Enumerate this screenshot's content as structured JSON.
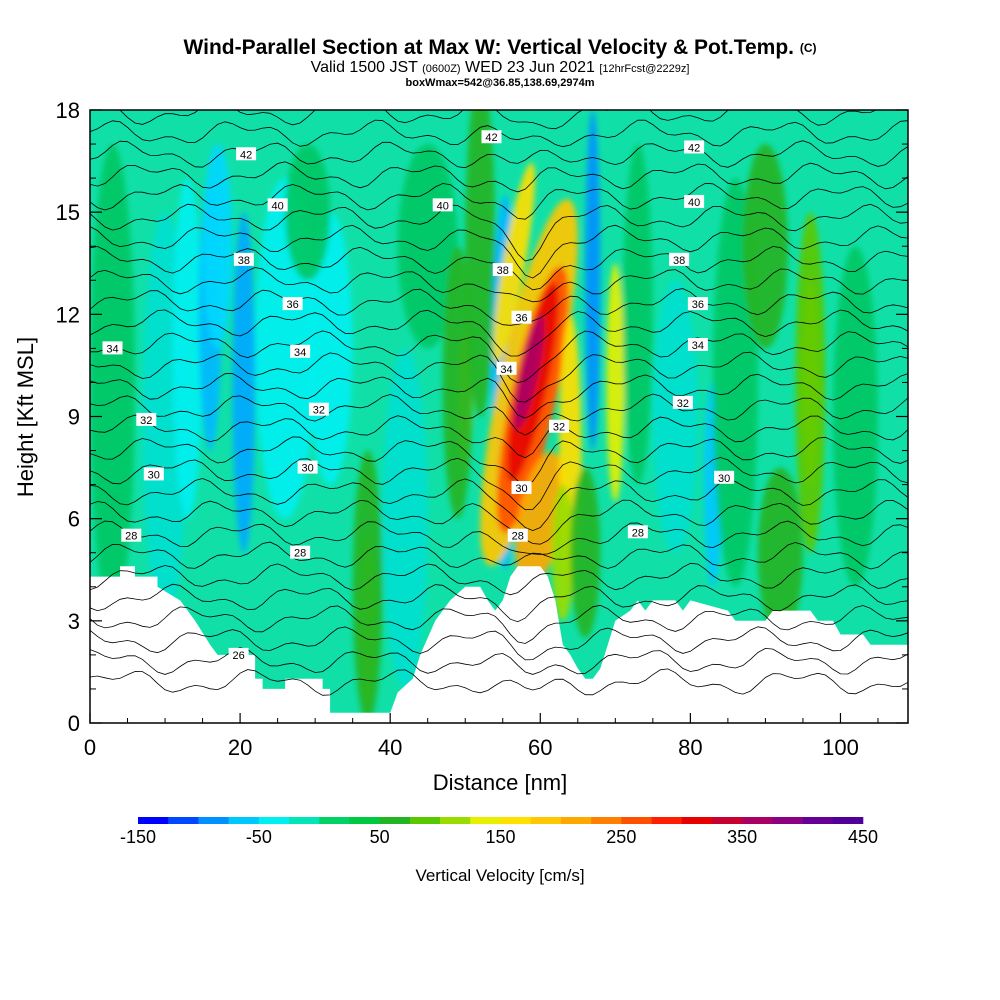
{
  "header": {
    "title": "Wind-Parallel Section at Max W: Vertical Velocity & Pot.Temp.",
    "title_mark": "(C)",
    "valid_prefix": "Valid 1500 JST",
    "valid_utc": "(0600Z)",
    "valid_date": "WED 23 Jun 2021",
    "forecast_info": "[12hrFcst@2229z]",
    "box_info": "boxWmax=542@36.85,138.69,2974m"
  },
  "chart_data": {
    "type": "heatmap",
    "title": "Wind-Parallel Section at Max W: Vertical Velocity & Pot.Temp.",
    "xlabel": "Distance [nm]",
    "ylabel": "Height [Kft MSL]",
    "xlim": [
      0,
      109
    ],
    "ylim": [
      0,
      18
    ],
    "x_ticks": [
      0,
      20,
      40,
      60,
      80,
      100
    ],
    "y_ticks": [
      0,
      3,
      6,
      9,
      12,
      15,
      18
    ],
    "colorbar": {
      "title": "Vertical Velocity [cm/s]",
      "range": [
        -150,
        450
      ],
      "tick_values": [
        -150,
        -50,
        50,
        150,
        250,
        350,
        450
      ],
      "tick_labels": [
        "-150",
        "-50",
        "50",
        "150",
        "250",
        "350",
        "450"
      ],
      "colors": [
        "#0000ff",
        "#0048ff",
        "#0090ff",
        "#00c8ff",
        "#00f0f0",
        "#00e6b8",
        "#00d264",
        "#00c840",
        "#22b422",
        "#5ac800",
        "#9adc00",
        "#e6f000",
        "#ffe000",
        "#ffc800",
        "#ffa800",
        "#ff8000",
        "#ff5000",
        "#ff1e00",
        "#e60000",
        "#c80032",
        "#aa0064",
        "#8c0082",
        "#640096",
        "#500096"
      ]
    },
    "potential_temperature_contours": {
      "levels": [
        26,
        28,
        30,
        32,
        34,
        36,
        38,
        40,
        42
      ],
      "labels": [
        {
          "text": "42",
          "x": 20.8,
          "y": 16.7
        },
        {
          "text": "42",
          "x": 53.5,
          "y": 17.2
        },
        {
          "text": "42",
          "x": 80.5,
          "y": 16.9
        },
        {
          "text": "40",
          "x": 25.0,
          "y": 15.2
        },
        {
          "text": "40",
          "x": 47.0,
          "y": 15.2
        },
        {
          "text": "40",
          "x": 80.5,
          "y": 15.3
        },
        {
          "text": "38",
          "x": 20.5,
          "y": 13.6
        },
        {
          "text": "38",
          "x": 55.0,
          "y": 13.3
        },
        {
          "text": "38",
          "x": 78.5,
          "y": 13.6
        },
        {
          "text": "36",
          "x": 27.0,
          "y": 12.3
        },
        {
          "text": "36",
          "x": 57.5,
          "y": 11.9
        },
        {
          "text": "36",
          "x": 81.0,
          "y": 12.3
        },
        {
          "text": "34",
          "x": 3.0,
          "y": 11.0
        },
        {
          "text": "34",
          "x": 28.0,
          "y": 10.9
        },
        {
          "text": "34",
          "x": 55.5,
          "y": 10.4
        },
        {
          "text": "34",
          "x": 81.0,
          "y": 11.1
        },
        {
          "text": "32",
          "x": 7.5,
          "y": 8.9
        },
        {
          "text": "32",
          "x": 30.5,
          "y": 9.2
        },
        {
          "text": "32",
          "x": 62.5,
          "y": 8.7
        },
        {
          "text": "32",
          "x": 79.0,
          "y": 9.4
        },
        {
          "text": "30",
          "x": 8.5,
          "y": 7.3
        },
        {
          "text": "30",
          "x": 29.0,
          "y": 7.5
        },
        {
          "text": "30",
          "x": 57.5,
          "y": 6.9
        },
        {
          "text": "30",
          "x": 84.5,
          "y": 7.2
        },
        {
          "text": "28",
          "x": 5.5,
          "y": 5.5
        },
        {
          "text": "28",
          "x": 28.0,
          "y": 5.0
        },
        {
          "text": "28",
          "x": 57.0,
          "y": 5.5
        },
        {
          "text": "28",
          "x": 73.0,
          "y": 5.6
        },
        {
          "text": "26",
          "x": 19.8,
          "y": 2.0
        }
      ]
    }
  }
}
